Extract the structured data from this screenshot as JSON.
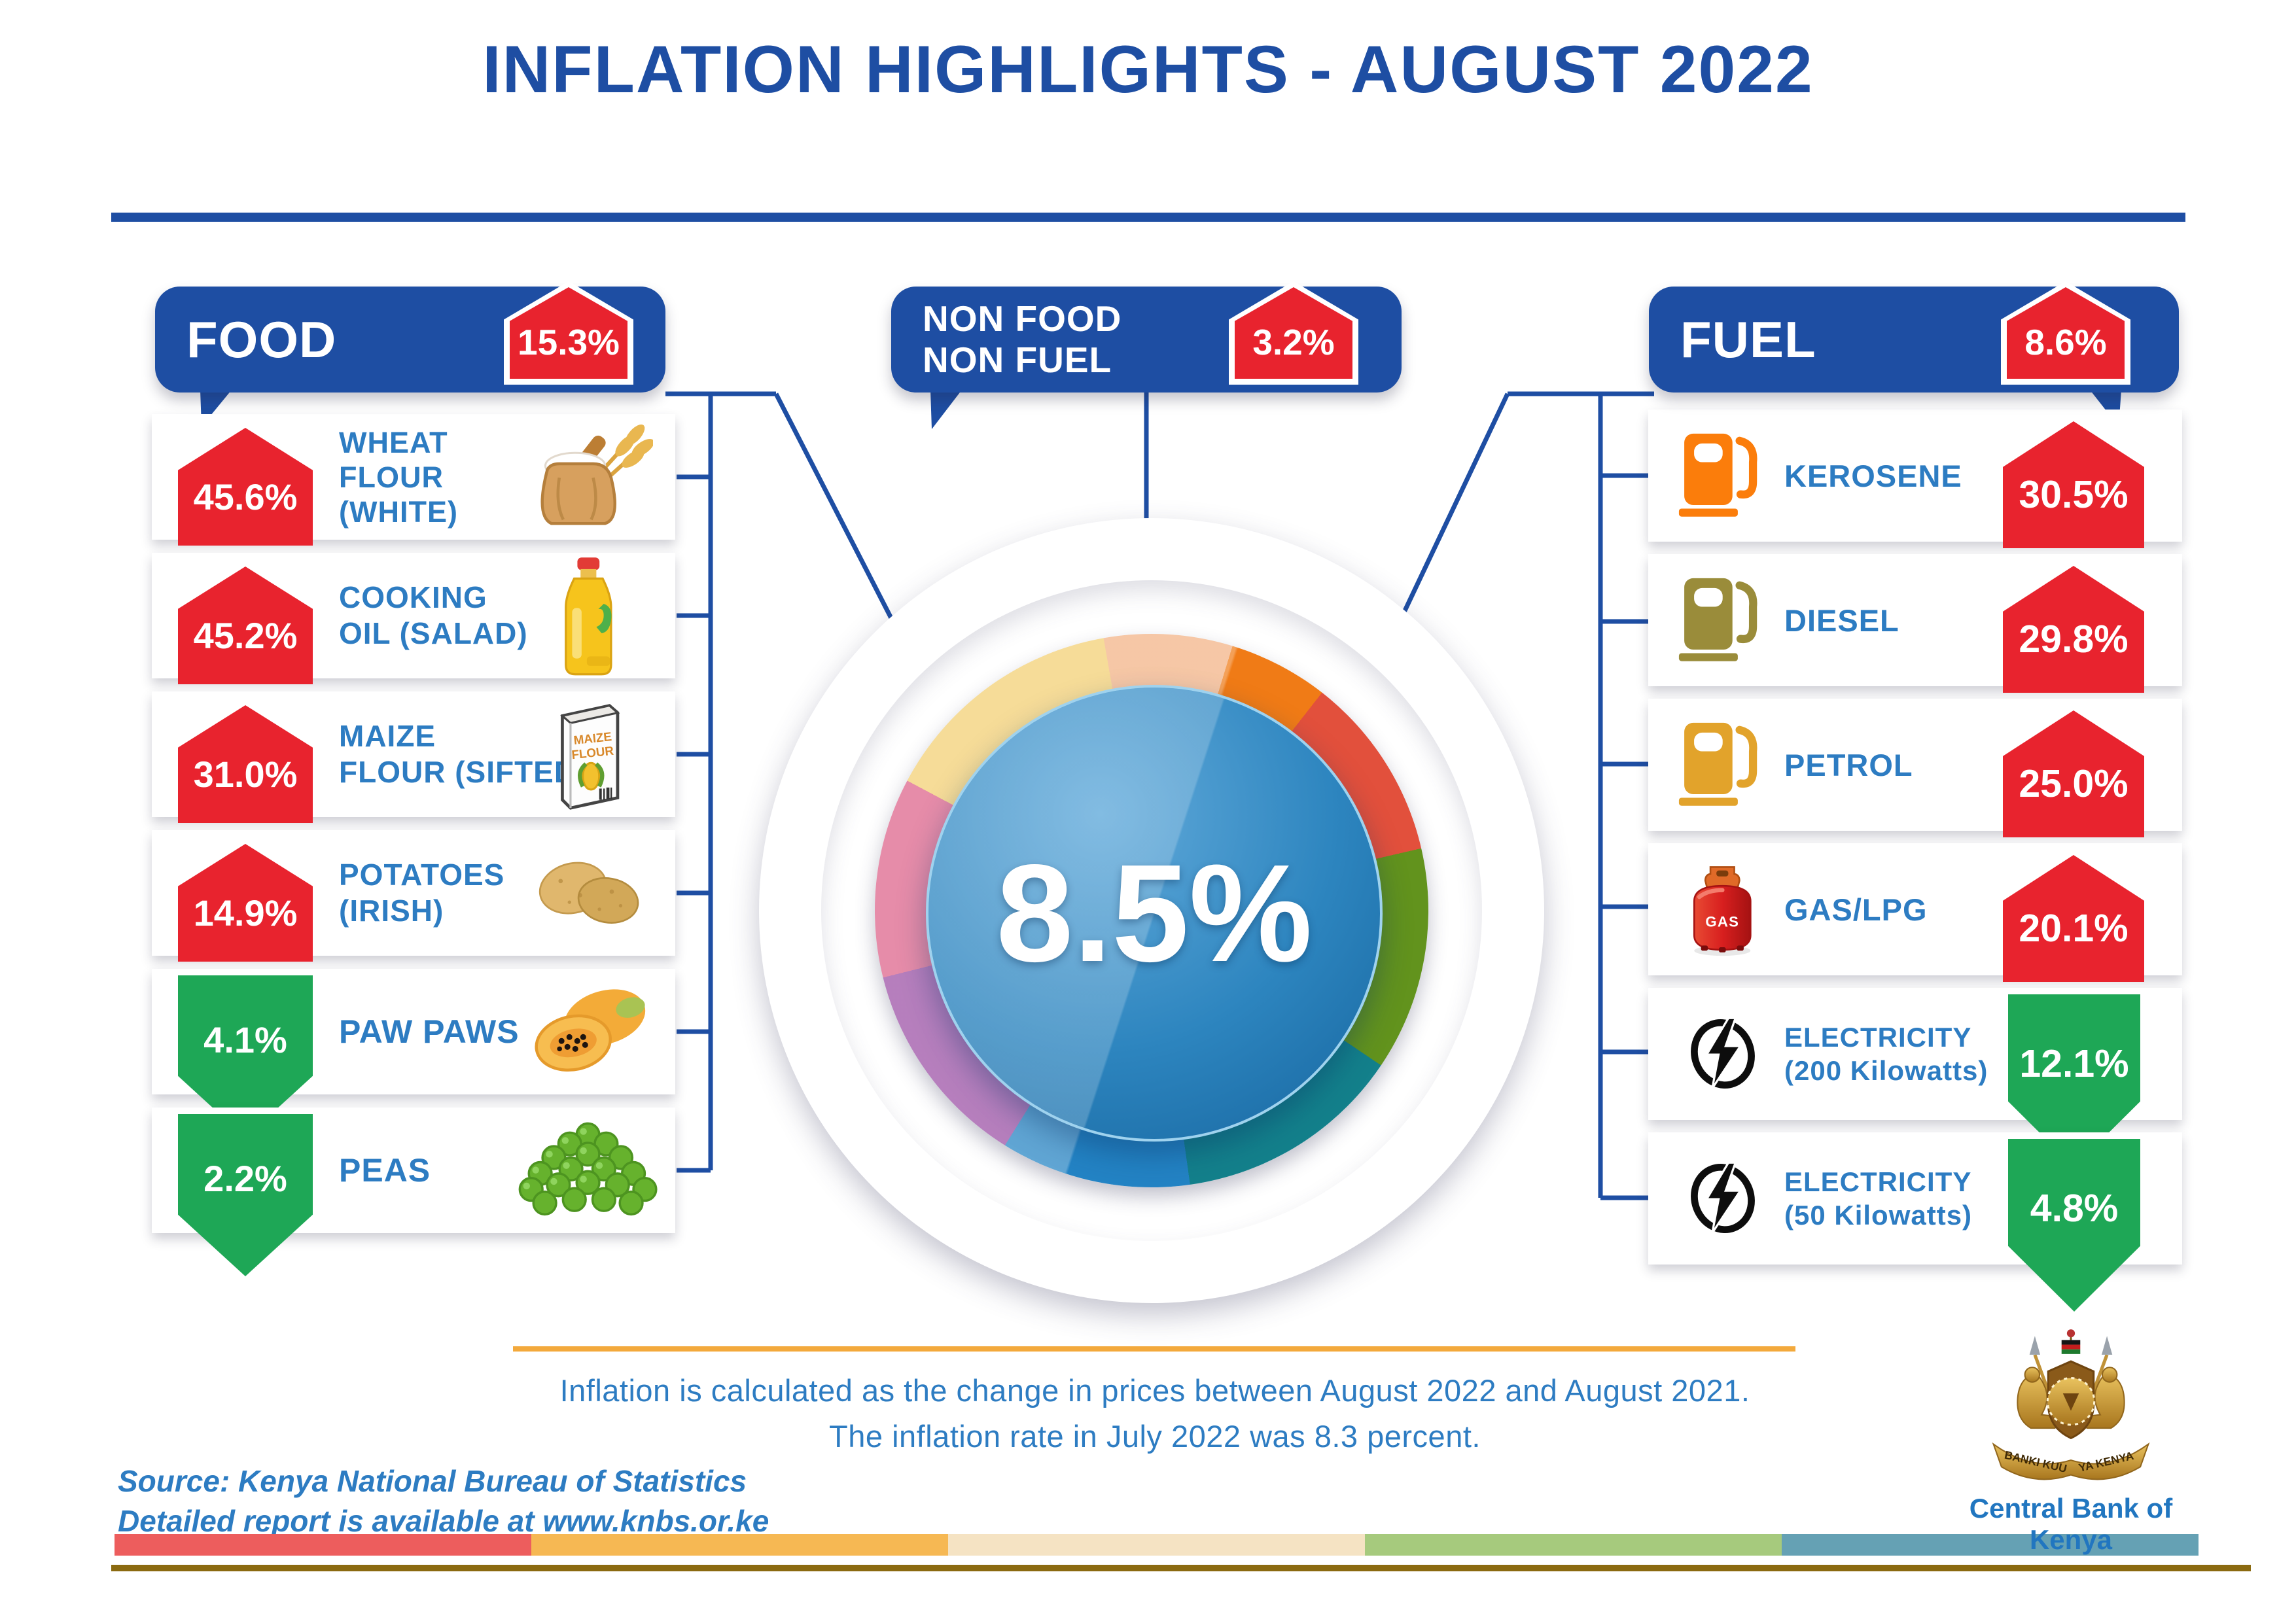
{
  "title": "INFLATION HIGHLIGHTS - AUGUST 2022",
  "headers": {
    "food": {
      "label": "FOOD",
      "value": "15.3%",
      "direction": "up"
    },
    "non_food_non_fuel": {
      "label_line1": "NON FOOD",
      "label_line2": "NON FUEL",
      "value": "3.2%",
      "direction": "up"
    },
    "fuel": {
      "label": "FUEL",
      "value": "8.6%",
      "direction": "up"
    }
  },
  "overall": {
    "value": "8.5%"
  },
  "food_items": [
    {
      "value": "45.6%",
      "direction": "up",
      "lines": [
        "WHEAT",
        "FLOUR",
        "(WHITE)"
      ],
      "icon": "flour-sack"
    },
    {
      "value": "45.2%",
      "direction": "up",
      "lines": [
        "COOKING",
        "OIL (SALAD)"
      ],
      "icon": "oil-bottle"
    },
    {
      "value": "31.0%",
      "direction": "up",
      "lines": [
        "MAIZE",
        "FLOUR (SIFTED)"
      ],
      "icon": "maize-pack"
    },
    {
      "value": "14.9%",
      "direction": "up",
      "lines": [
        "POTATOES",
        "(IRISH)"
      ],
      "icon": "potatoes"
    },
    {
      "value": "4.1%",
      "direction": "down",
      "lines": [
        "PAW PAWS"
      ],
      "icon": "papaya"
    },
    {
      "value": "2.2%",
      "direction": "down",
      "lines": [
        "PEAS"
      ],
      "icon": "peas"
    }
  ],
  "fuel_items": [
    {
      "value": "30.5%",
      "direction": "up",
      "lines": [
        "KEROSENE"
      ],
      "icon": "pump-orange"
    },
    {
      "value": "29.8%",
      "direction": "up",
      "lines": [
        "DIESEL"
      ],
      "icon": "pump-olive"
    },
    {
      "value": "25.0%",
      "direction": "up",
      "lines": [
        "PETROL"
      ],
      "icon": "pump-gold"
    },
    {
      "value": "20.1%",
      "direction": "up",
      "lines": [
        "GAS/LPG"
      ],
      "icon": "gas-cylinder"
    },
    {
      "value": "12.1%",
      "direction": "down",
      "lines": [
        "ELECTRICITY",
        "(200 Kilowatts)"
      ],
      "icon": "electricity"
    },
    {
      "value": "4.8%",
      "direction": "down",
      "lines": [
        "ELECTRICITY",
        "(50 Kilowatts)"
      ],
      "icon": "electricity"
    }
  ],
  "note": {
    "line1": "Inflation is calculated as the change in prices between August 2022 and August 2021.",
    "line2": "The inflation rate in July 2022 was 8.3 percent."
  },
  "source": {
    "line1": "Source: Kenya National Bureau of Statistics",
    "line2": "Detailed report is available at www.knbs.or.ke"
  },
  "logo": {
    "caption": "Central Bank of Kenya",
    "ribbon_left": "BANKI KUU",
    "ribbon_right": "YA KENYA"
  },
  "colors": {
    "brand_blue": "#1e4ea3",
    "label_blue": "#2d7cc2",
    "increase_red": "#e8232e",
    "decrease_green": "#1ea756",
    "divider_orange": "#f3a93c",
    "stripe": [
      "#ed5d5d",
      "#f6b853",
      "#f5e3c3",
      "#a6ca7d",
      "#65a1b4"
    ],
    "stripe_underline": "#8b6a10"
  },
  "chart_data": {
    "type": "pie",
    "title": "INFLATION HIGHLIGHTS - AUGUST 2022",
    "center_label": "8.5%",
    "center_value": 8.5,
    "units": "percent change in prices, August 2021 to August 2022",
    "categories": [
      "FOOD",
      "NON FOOD NON FUEL",
      "FUEL"
    ],
    "values": [
      15.3,
      3.2,
      8.6
    ],
    "annotations": [
      "Overall inflation August 2022: 8.5%",
      "Inflation rate July 2022: 8.3%"
    ],
    "series": [
      {
        "name": "Food items (% change)",
        "points": [
          {
            "label": "WHEAT FLOUR (WHITE)",
            "value": 45.6,
            "direction": "up"
          },
          {
            "label": "COOKING OIL (SALAD)",
            "value": 45.2,
            "direction": "up"
          },
          {
            "label": "MAIZE FLOUR (SIFTED)",
            "value": 31.0,
            "direction": "up"
          },
          {
            "label": "POTATOES (IRISH)",
            "value": 14.9,
            "direction": "up"
          },
          {
            "label": "PAW PAWS",
            "value": 4.1,
            "direction": "down"
          },
          {
            "label": "PEAS",
            "value": 2.2,
            "direction": "down"
          }
        ]
      },
      {
        "name": "Fuel items (% change)",
        "points": [
          {
            "label": "KEROSENE",
            "value": 30.5,
            "direction": "up"
          },
          {
            "label": "DIESEL",
            "value": 29.8,
            "direction": "up"
          },
          {
            "label": "PETROL",
            "value": 25.0,
            "direction": "up"
          },
          {
            "label": "GAS/LPG",
            "value": 20.1,
            "direction": "up"
          },
          {
            "label": "ELECTRICITY (200 Kilowatts)",
            "value": 12.1,
            "direction": "down"
          },
          {
            "label": "ELECTRICITY (50 Kilowatts)",
            "value": 4.8,
            "direction": "down"
          }
        ]
      }
    ],
    "legend": "none",
    "donut_segments": [
      {
        "color": "#f2b183",
        "from": -10,
        "to": 17
      },
      {
        "color": "#f07b16",
        "from": 17,
        "to": 38
      },
      {
        "color": "#e2503c",
        "from": 38,
        "to": 77
      },
      {
        "color": "#62931d",
        "from": 77,
        "to": 124
      },
      {
        "color": "#13808b",
        "from": 124,
        "to": 172
      },
      {
        "color": "#2383c4",
        "from": 172,
        "to": 212
      },
      {
        "color": "#9a4da4",
        "from": 212,
        "to": 256
      },
      {
        "color": "#dd6088",
        "from": 256,
        "to": 298
      },
      {
        "color": "#f3cf70",
        "from": 298,
        "to": 350
      }
    ]
  }
}
